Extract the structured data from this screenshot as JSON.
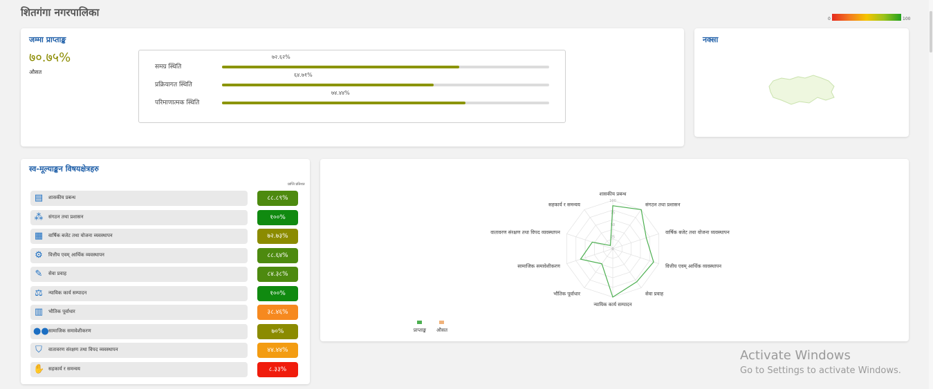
{
  "page": {
    "title": "शितगंगा नगरपालिका",
    "legend": {
      "min": "0",
      "max": "100"
    }
  },
  "score_card": {
    "title": "जम्मा प्राप्ताङ्क",
    "value": "७०.७५%",
    "sub_label": "औसत",
    "rows": [
      {
        "label": "समग्र स्थिति",
        "pct": "७२.६२%",
        "fraction": 0.7262
      },
      {
        "label": "प्रक्रियागत स्थिति",
        "pct": "६४.७१%",
        "fraction": 0.6471
      },
      {
        "label": "परिमाणात्मक स्थिति",
        "pct": "७४.४४%",
        "fraction": 0.7444
      }
    ]
  },
  "map_card": {
    "title": "नक्सा"
  },
  "areas_card": {
    "title": "स्व-मूल्याङ्कन विषयक्षेत्रहरु",
    "column_header": "प्राप्ति प्रतिशत",
    "items": [
      {
        "label": "शासकीय प्रबन्ध",
        "value": "८८.८९%",
        "icon": "document-icon",
        "glyph": "▤",
        "color": "#4d8a0f"
      },
      {
        "label": "संगठन तथा प्रशासन",
        "value": "१००%",
        "icon": "org-chart-icon",
        "glyph": "⁂",
        "color": "#108a10"
      },
      {
        "label": "वार्षिक बजेट तथा योजना व्यवस्थापन",
        "value": "७२.७३%",
        "icon": "calendar-icon",
        "glyph": "▦",
        "color": "#8b8b00"
      },
      {
        "label": "वित्तीय एवम् आर्थिक व्यवस्थापन",
        "value": "८८.६४%",
        "icon": "settings-icon",
        "glyph": "⚙",
        "color": "#4d8a0f"
      },
      {
        "label": "सेवा प्रवाह",
        "value": "८४.३८%",
        "icon": "wrench-icon",
        "glyph": "✎",
        "color": "#4d8a0f"
      },
      {
        "label": "न्यायिक कार्य सम्पादन",
        "value": "१००%",
        "icon": "scales-icon",
        "glyph": "⚖",
        "color": "#108a10"
      },
      {
        "label": "भौतिक पूर्वाधार",
        "value": "३८.४६%",
        "icon": "building-icon",
        "glyph": "▥",
        "color": "#f6891f"
      },
      {
        "label": "सामाजिक समावेशीकरण",
        "value": "७०%",
        "icon": "people-icon",
        "glyph": "●●",
        "color": "#8b8b00"
      },
      {
        "label": "वातावरण संरक्षण तथा विपद व्यवस्थापन",
        "value": "४४.४४%",
        "icon": "shield-icon",
        "glyph": "⛉",
        "color": "#f39c12"
      },
      {
        "label": "सहकार्य र समन्वय",
        "value": "८.३३%",
        "icon": "handshake-icon",
        "glyph": "✋",
        "color": "#f01c0c"
      }
    ]
  },
  "chart_data": {
    "type": "radar",
    "axes": [
      "शासकीय प्रबन्ध",
      "संगठन तथा प्रशासन",
      "वार्षिक बजेट तथा योजना व्यवस्थापन",
      "वित्तीय एवम् आर्थिक व्यवस्थापन",
      "सेवा प्रवाह",
      "न्यायिक कार्य सम्पादन",
      "भौतिक पूर्वाधार",
      "सामाजिक समावेशीकरण",
      "वातावरण संरक्षण तथा विपद व्यवस्थापन",
      "सहकार्य र समन्वय"
    ],
    "range": [
      0,
      100
    ],
    "ticks": [
      "0",
      "25",
      "50",
      "75",
      "100"
    ],
    "series": [
      {
        "name": "प्राप्ताङ्क",
        "color": "#4caf50",
        "values": [
          88.89,
          100,
          72.73,
          88.64,
          84.38,
          100,
          38.46,
          70,
          44.44,
          8.33
        ]
      },
      {
        "name": "औसत",
        "color": "#f0b27a",
        "values": []
      }
    ]
  },
  "watermark": {
    "title": "Activate Windows",
    "subtitle": "Go to Settings to activate Windows."
  }
}
